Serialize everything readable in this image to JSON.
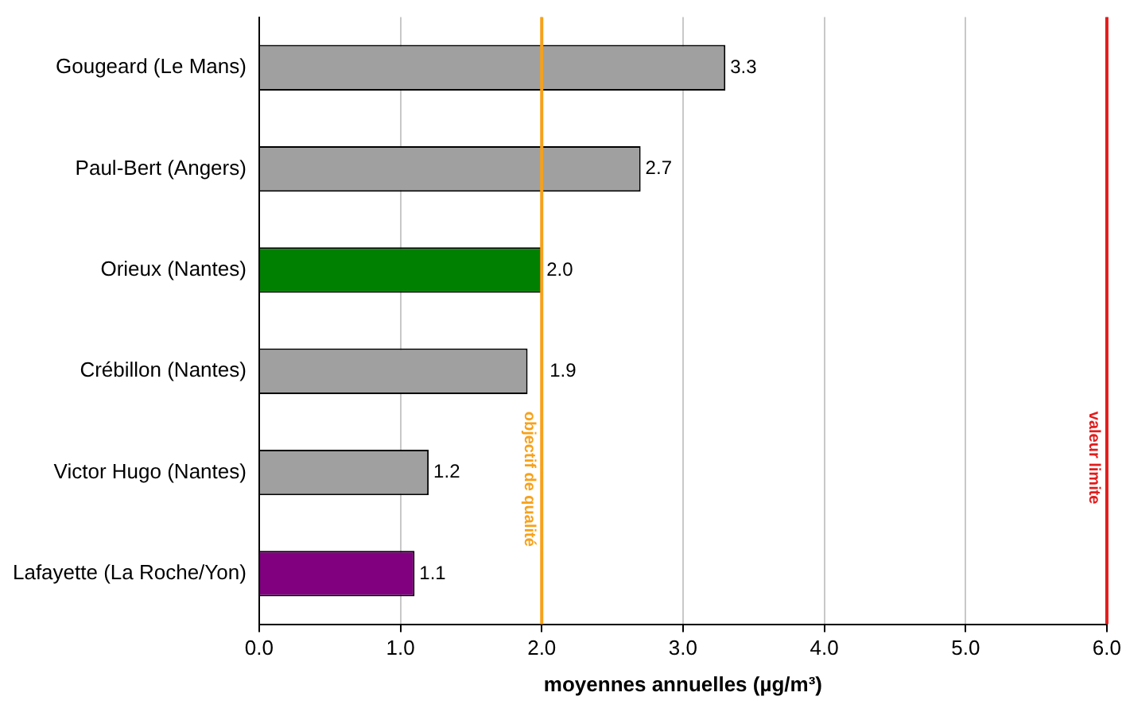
{
  "chart_data": {
    "type": "bar",
    "orientation": "horizontal",
    "xlabel": "moyennes annuelles (µg/m³)",
    "categories": [
      "Gougeard (Le Mans)",
      "Paul-Bert (Angers)",
      "Orieux (Nantes)",
      "Crébillon (Nantes)",
      "Victor Hugo (Nantes)",
      "Lafayette (La Roche/Yon)"
    ],
    "values": [
      3.3,
      2.7,
      2.0,
      1.9,
      1.2,
      1.1
    ],
    "colors": [
      "#a0a0a0",
      "#a0a0a0",
      "#008000",
      "#a0a0a0",
      "#a0a0a0",
      "#800080"
    ],
    "value_labels": [
      "3.3",
      "2.7",
      "2.0",
      "1.9",
      "1.2",
      "1.1"
    ],
    "xlim": [
      0,
      6
    ],
    "xticks": [
      {
        "value": 0,
        "label": "0.0"
      },
      {
        "value": 1,
        "label": "1.0"
      },
      {
        "value": 2,
        "label": "2.0"
      },
      {
        "value": 3,
        "label": "3.0"
      },
      {
        "value": 4,
        "label": "4.0"
      },
      {
        "value": 5,
        "label": "5.0"
      },
      {
        "value": 6,
        "label": "6.0"
      }
    ],
    "grid": "x",
    "legend": false,
    "ref_lines": [
      {
        "axis": "x",
        "value": 2,
        "label": "objectif de qualité",
        "color": "#f7a11a"
      },
      {
        "axis": "x",
        "value": 6,
        "label": "valeur limite",
        "color": "#e31c1c"
      }
    ]
  }
}
